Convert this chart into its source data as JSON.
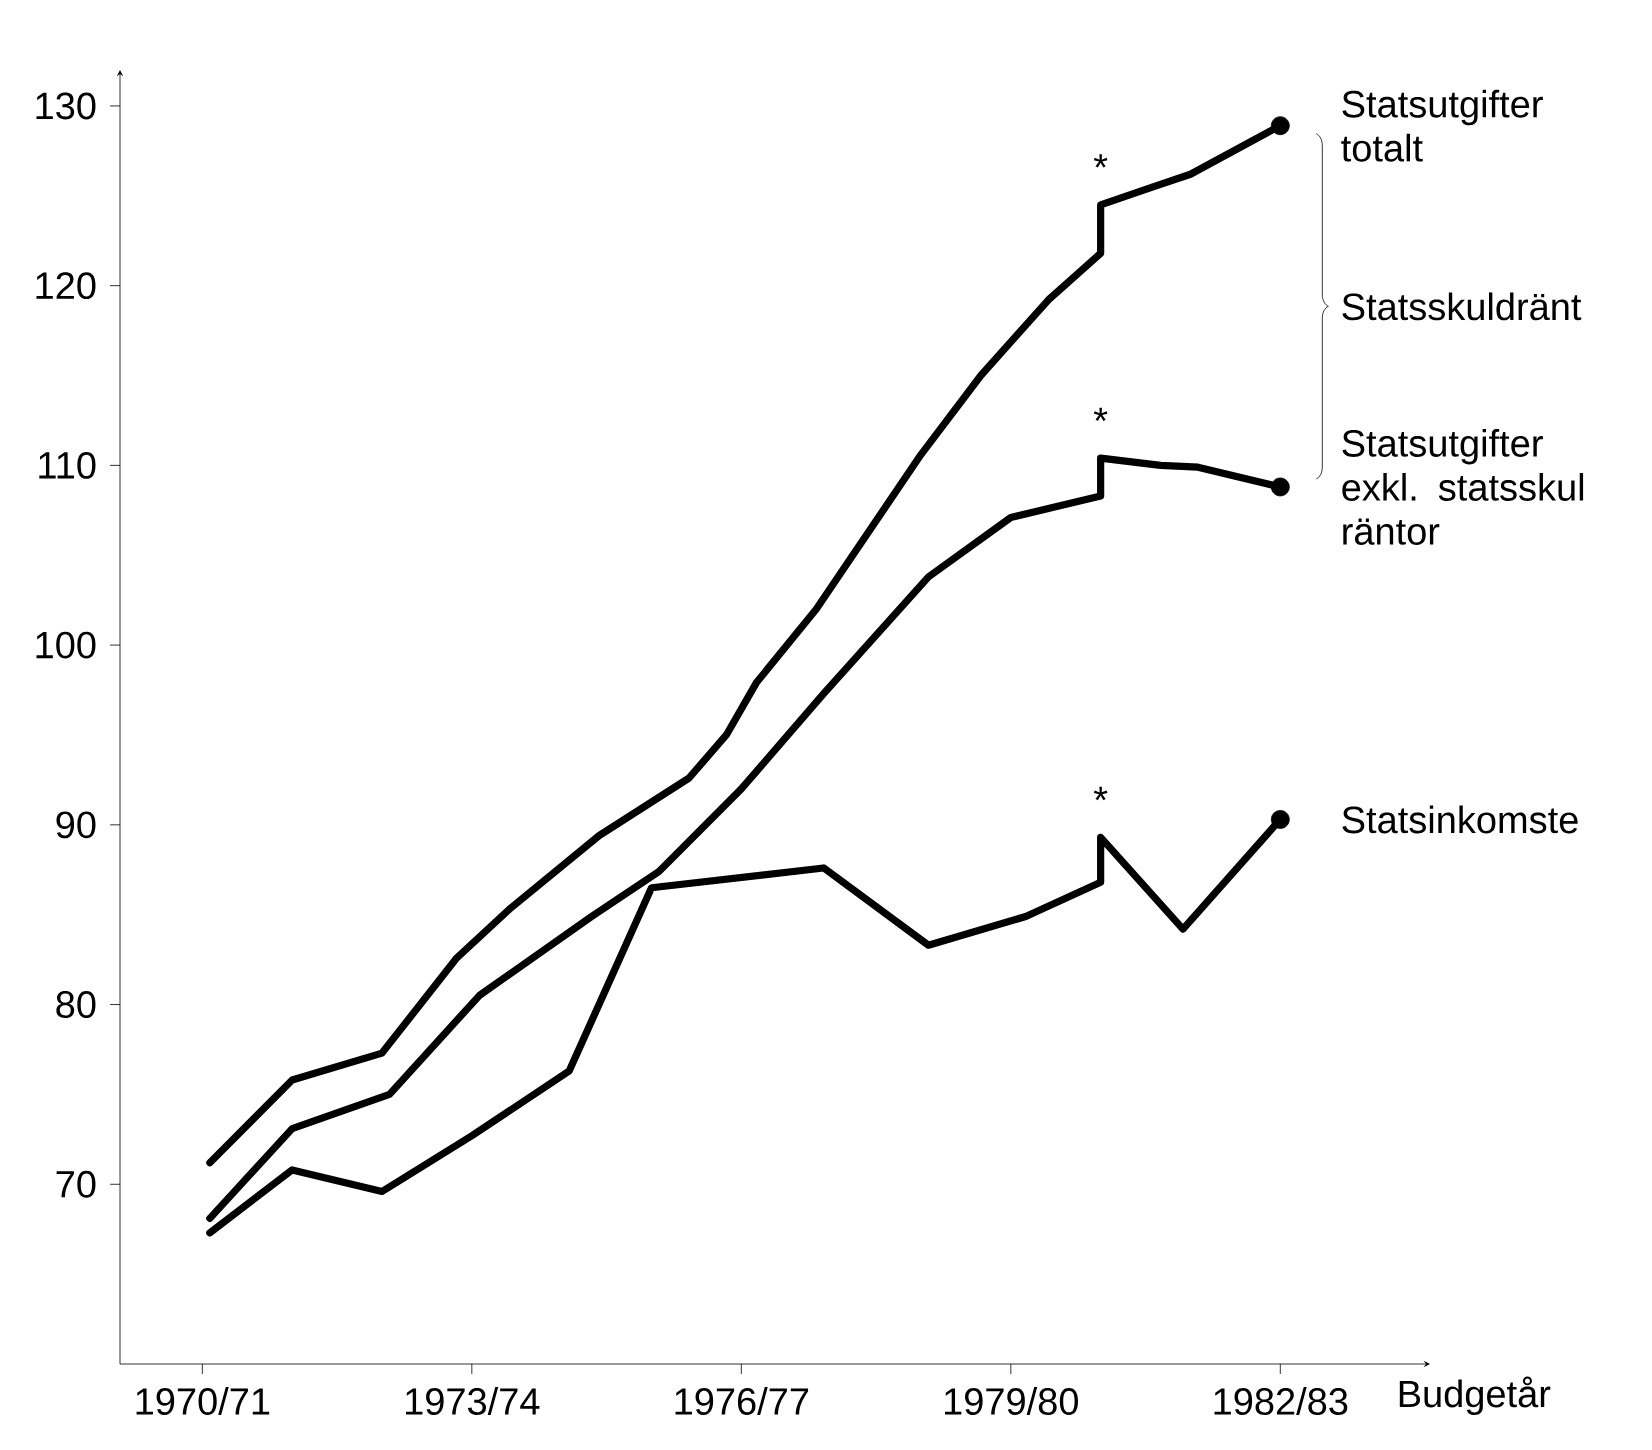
{
  "chart_data": {
    "type": "line",
    "xlabel": "Budgetår",
    "xlim": [
      "1969-08",
      "1984-03"
    ],
    "ylim": [
      60,
      132
    ],
    "xticks": [
      {
        "value": "1970-07",
        "label": "1970/71"
      },
      {
        "value": "1973-07",
        "label": "1973/74"
      },
      {
        "value": "1976-07",
        "label": "1976/77"
      },
      {
        "value": "1979-07",
        "label": "1979/80"
      },
      {
        "value": "1982-07",
        "label": "1982/83"
      }
    ],
    "yticks": [
      70,
      80,
      90,
      100,
      110,
      120,
      130
    ],
    "grid": false,
    "legend": false,
    "marker": "none",
    "series": [
      {
        "name": "Statsutgifter totalt",
        "color": "#000000",
        "x": [
          "1970-08",
          "1971-07",
          "1972-07",
          "1973-05",
          "1973-12",
          "1974-12",
          "1975-12",
          "1976-05",
          "1976-09",
          "1977-05",
          "1978-07",
          "1979-03",
          "1979-12",
          "1980-07",
          "1980-07",
          "1981-02",
          "1981-07",
          "1982-07"
        ],
        "values": [
          71.2,
          75.8,
          77.3,
          82.6,
          85.3,
          89.4,
          92.6,
          95.0,
          97.9,
          102.0,
          110.6,
          115.0,
          119.2,
          121.8,
          124.5,
          125.5,
          126.2,
          128.9
        ]
      },
      {
        "name": "Statsutgifter exkl. statsskul räntor",
        "color": "#000000",
        "x": [
          "1970-08",
          "1971-07",
          "1972-08",
          "1973-08",
          "1974-11",
          "1975-08",
          "1976-07",
          "1977-06",
          "1978-08",
          "1979-07",
          "1980-07",
          "1980-07",
          "1981-03",
          "1981-08",
          "1982-07"
        ],
        "values": [
          68.1,
          73.1,
          75.0,
          80.5,
          84.9,
          87.4,
          92.0,
          97.3,
          103.8,
          107.1,
          108.3,
          110.4,
          110.0,
          109.9,
          108.8
        ]
      },
      {
        "name": "Statsinkomste",
        "color": "#000000",
        "x": [
          "1970-08",
          "1971-07",
          "1972-07",
          "1973-07",
          "1974-08",
          "1975-07",
          "1977-06",
          "1978-08",
          "1979-09",
          "1980-07",
          "1980-07",
          "1981-06",
          "1982-07"
        ],
        "values": [
          67.3,
          70.8,
          69.6,
          72.7,
          76.3,
          86.5,
          87.6,
          83.3,
          84.9,
          86.8,
          89.3,
          84.2,
          90.3
        ]
      },
      {
        "type": "scatter",
        "marker": "circle",
        "color": "#000000",
        "x": [
          "1982-07",
          "1982-07",
          "1982-07"
        ],
        "values": [
          128.9,
          108.8,
          90.3
        ]
      }
    ],
    "annotations": [
      "*",
      "*",
      "*",
      "Statsskuldränt"
    ]
  }
}
